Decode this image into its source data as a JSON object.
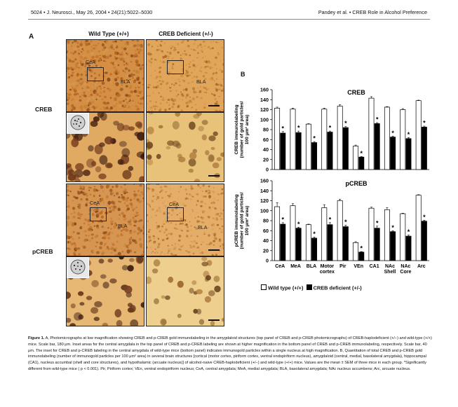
{
  "header": {
    "left": "5024 • J. Neurosci., May 26, 2004 • 24(21):5022–5030",
    "right": "Pandey et al. • CREB Role in Alcohol Preference"
  },
  "panelA": {
    "label": "A",
    "col1": "Wild Type (+/+)",
    "col2": "CREB Deficient (+/-)",
    "row1": "CREB",
    "row2": "pCREB",
    "region_cea": "CeA",
    "region_bla": "BLA"
  },
  "panelB": {
    "label": "B",
    "legend_wt": "Wild type (+/+)",
    "legend_het": "CREB deficient (+/-)"
  },
  "chart_data": [
    {
      "type": "bar",
      "title": "CREB",
      "ylabel": "CREB immunolabeling (number of gold particles/ 100 μm² area)",
      "ylim": [
        0,
        160
      ],
      "yticks": [
        0,
        20,
        40,
        60,
        80,
        100,
        120,
        140,
        160
      ],
      "categories": [
        "CeA",
        "MeA",
        "BLA",
        "Motor cortex",
        "Pir",
        "VEn",
        "CA1",
        "NAc Shell",
        "NAc Core",
        "Arc"
      ],
      "series": [
        {
          "name": "Wild type (+/+)",
          "values": [
            123,
            121,
            91,
            121,
            127,
            47,
            143,
            125,
            120,
            138
          ],
          "errors": [
            2,
            2,
            1,
            2,
            3,
            2,
            3,
            1,
            2,
            1
          ]
        },
        {
          "name": "CREB deficient (+/-)",
          "values": [
            73,
            74,
            54,
            75,
            84,
            25,
            92,
            65,
            62,
            85
          ],
          "errors": [
            3,
            3,
            2,
            2,
            2,
            1,
            2,
            2,
            2,
            2
          ]
        }
      ],
      "significance": [
        "*",
        "*",
        "*",
        "*",
        "*",
        "*",
        "*",
        "*",
        "*",
        "*"
      ]
    },
    {
      "type": "bar",
      "title": "pCREB",
      "ylabel": "pCREB immunolabeling (number of gold particles/ 100 μm² area)",
      "ylim": [
        0,
        160
      ],
      "yticks": [
        0,
        20,
        40,
        60,
        80,
        100,
        120,
        140,
        160
      ],
      "categories": [
        "CeA",
        "MeA",
        "BLA",
        "Motor cortex",
        "Pir",
        "VEn",
        "CA1",
        "NAc Shell",
        "NAc Core",
        "Arc"
      ],
      "series": [
        {
          "name": "Wild type (+/+)",
          "values": [
            108,
            110,
            72,
            106,
            120,
            36,
            105,
            102,
            94,
            131
          ],
          "errors": [
            8,
            4,
            1,
            6,
            3,
            2,
            2,
            4,
            1,
            1
          ]
        },
        {
          "name": "CREB deficient (+/-)",
          "values": [
            73,
            65,
            45,
            72,
            68,
            17,
            65,
            58,
            49,
            79
          ],
          "errors": [
            3,
            2,
            2,
            4,
            3,
            1,
            4,
            2,
            2,
            2
          ]
        }
      ],
      "significance": [
        "*",
        "*",
        "*",
        "*",
        "*",
        "*",
        "*",
        "*",
        "*",
        "*"
      ]
    }
  ],
  "caption": {
    "label": "Figure 1.",
    "text": "A, Photomicrographs at low magnification showing CREB and p-CREB gold immunolabeling in the amygdaloid structures (top panel of CREB and p-CREB photomicrographs) of CREB-haplodeficient (+/−) and wild-type (+/+) mice. Scale bar, 180 μm. Inset areas for the central amygdala in the top panel of CREB and p-CREB labeling are shown at higher magnification in the bottom panel of CREB and p-CREB immunolabeling, respectively. Scale bar, 40 μm. The inset for CREB and p-CREB labeling in the central amygdala of wild-type mice (bottom panel) indicates immunogold particles within a single nucleus at high magnification. B, Quantitation of total CREB and p-CREB gold immunolabeling (number of immunogold particles per 100 μm² area) in several brain structures [cortical (motor cortex, piriform cortex, ventral endopiriform nucleus), amygdaloid (central, medial, basolateral amygdala), hippocampal (CA1), nucleus accumbal (shell and core structures), and hypothalamic (arcuate nucleus)] of alcohol-naive CREB-haplodeficient (+/−) and wild-type (+/+) mice. Values are the mean ± SEM of three mice in each group. *Significantly different from wild-type mice ( p < 0.001). Pir, Piriform cortex; VEn, ventral endopiriform nucleus; CeA, central amygdala; MeA, medial amygdala; BLA, basolateral amygdala; NAc nucleus accumbens; Arc, arcuate nucleus."
  }
}
